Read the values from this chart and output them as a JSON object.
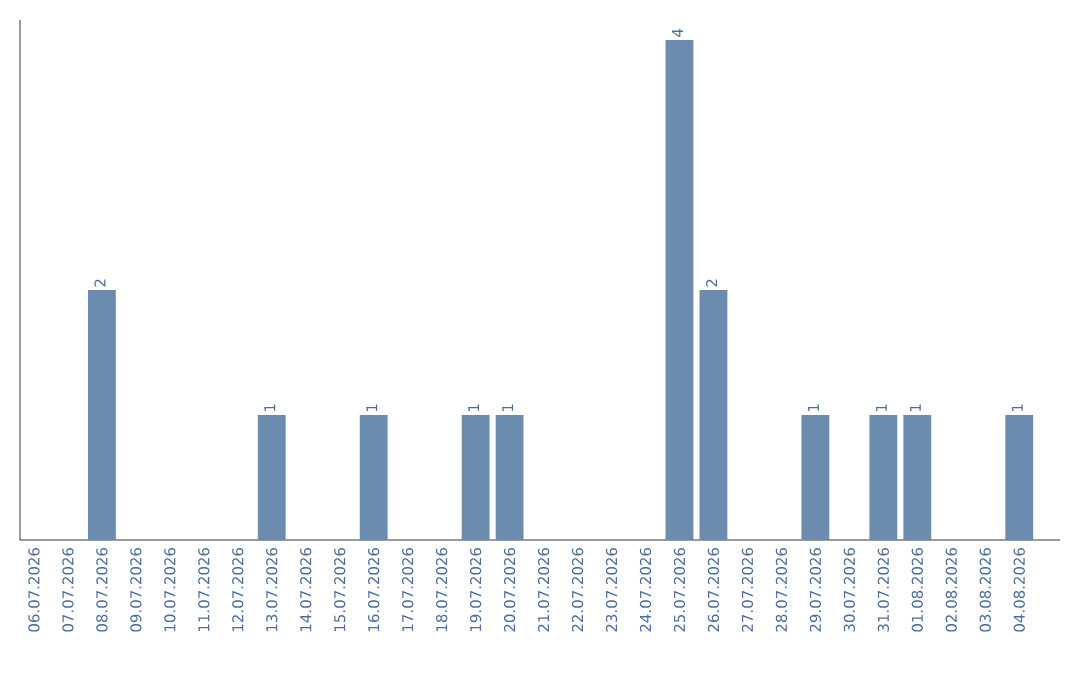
{
  "chart_data": {
    "type": "bar",
    "categories": [
      "06.07.2026",
      "07.07.2026",
      "08.07.2026",
      "09.07.2026",
      "10.07.2026",
      "11.07.2026",
      "12.07.2026",
      "13.07.2026",
      "14.07.2026",
      "15.07.2026",
      "16.07.2026",
      "17.07.2026",
      "18.07.2026",
      "19.07.2026",
      "20.07.2026",
      "21.07.2026",
      "22.07.2026",
      "23.07.2026",
      "24.07.2026",
      "25.07.2026",
      "26.07.2026",
      "27.07.2026",
      "28.07.2026",
      "29.07.2026",
      "30.07.2026",
      "31.07.2026",
      "01.08.2026",
      "02.08.2026",
      "03.08.2026",
      "04.08.2026"
    ],
    "values": [
      0,
      0,
      2,
      0,
      0,
      0,
      0,
      1,
      0,
      0,
      1,
      0,
      0,
      1,
      1,
      0,
      0,
      0,
      0,
      4,
      2,
      0,
      0,
      1,
      0,
      1,
      1,
      0,
      0,
      1
    ],
    "value_labels": [
      null,
      null,
      "2",
      null,
      null,
      null,
      null,
      "1",
      null,
      null,
      "1",
      null,
      null,
      "1",
      "1",
      null,
      null,
      null,
      null,
      "4",
      "2",
      null,
      null,
      "1",
      null,
      "1",
      "1",
      null,
      null,
      "1"
    ],
    "color": "#6b8cae"
  }
}
